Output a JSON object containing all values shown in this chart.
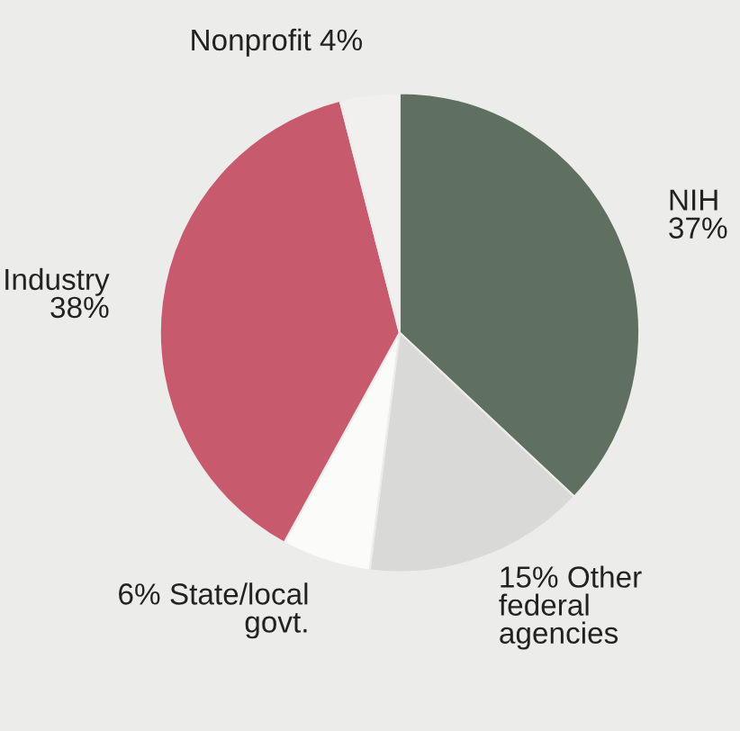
{
  "chart_data": {
    "type": "pie",
    "categories": [
      "NIH",
      "Other\nfederal\nagencies",
      "State/local\ngovt.",
      "Industry",
      "Nonprofit"
    ],
    "values": [
      37,
      15,
      6,
      38,
      4
    ],
    "value_labels": [
      "37%",
      "15%",
      "6%",
      "38%",
      "4%"
    ],
    "colors": [
      "#5f6f60",
      "#d9d9d7",
      "#fbfbf9",
      "#c75a6c",
      "#f1f0ee"
    ]
  }
}
